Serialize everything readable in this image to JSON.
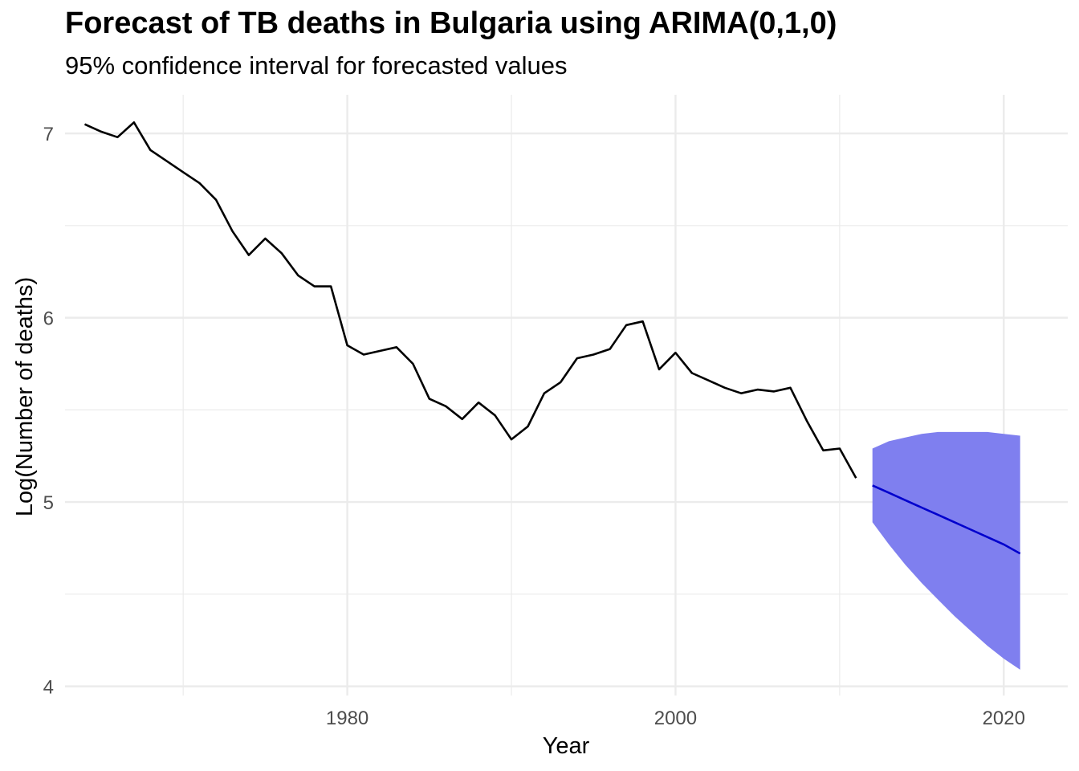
{
  "chart_data": {
    "type": "line",
    "title": "Forecast of TB deaths in Bulgaria using ARIMA(0,1,0)",
    "subtitle": "95% confidence interval for forecasted values",
    "xlabel": "Year",
    "ylabel": "Log(Number of deaths)",
    "xlim": [
      1962.8,
      2023.9
    ],
    "ylim": [
      3.95,
      7.21
    ],
    "x_ticks": [
      1980,
      2000,
      2020
    ],
    "x_minor_ticks": [
      1970,
      1990,
      2010
    ],
    "y_ticks": [
      4,
      5,
      6,
      7
    ],
    "y_minor_ticks": [
      4.5,
      5.5,
      6.5
    ],
    "grid": true,
    "colors": {
      "observed": "#000000",
      "forecast": "#0000cd",
      "interval": "#7f7fef",
      "grid": "#ebebeb"
    },
    "observed": {
      "x": [
        1964,
        1965,
        1966,
        1967,
        1968,
        1969,
        1970,
        1971,
        1972,
        1973,
        1974,
        1975,
        1976,
        1977,
        1978,
        1979,
        1980,
        1981,
        1982,
        1983,
        1984,
        1985,
        1986,
        1987,
        1988,
        1989,
        1990,
        1991,
        1992,
        1993,
        1994,
        1995,
        1996,
        1997,
        1998,
        1999,
        2000,
        2001,
        2002,
        2003,
        2004,
        2005,
        2006,
        2007,
        2008,
        2009,
        2010,
        2011
      ],
      "y": [
        7.05,
        7.01,
        6.98,
        7.06,
        6.91,
        6.85,
        6.79,
        6.73,
        6.64,
        6.47,
        6.34,
        6.43,
        6.35,
        6.23,
        6.17,
        6.17,
        5.85,
        5.8,
        5.82,
        5.84,
        5.75,
        5.56,
        5.52,
        5.45,
        5.54,
        5.47,
        5.34,
        5.41,
        5.59,
        5.65,
        5.78,
        5.8,
        5.83,
        5.96,
        5.98,
        5.72,
        5.81,
        5.7,
        5.66,
        5.62,
        5.59,
        5.61,
        5.6,
        5.62,
        5.44,
        5.28,
        5.29,
        5.13
      ]
    },
    "forecast": {
      "x": [
        2012,
        2013,
        2014,
        2015,
        2016,
        2017,
        2018,
        2019,
        2020,
        2021
      ],
      "y": [
        5.09,
        5.05,
        5.01,
        4.97,
        4.93,
        4.89,
        4.85,
        4.81,
        4.77,
        4.72
      ],
      "lower": [
        4.89,
        4.77,
        4.66,
        4.56,
        4.47,
        4.38,
        4.3,
        4.22,
        4.15,
        4.09
      ],
      "upper": [
        5.29,
        5.33,
        5.35,
        5.37,
        5.38,
        5.38,
        5.38,
        5.38,
        5.37,
        5.36
      ]
    }
  }
}
